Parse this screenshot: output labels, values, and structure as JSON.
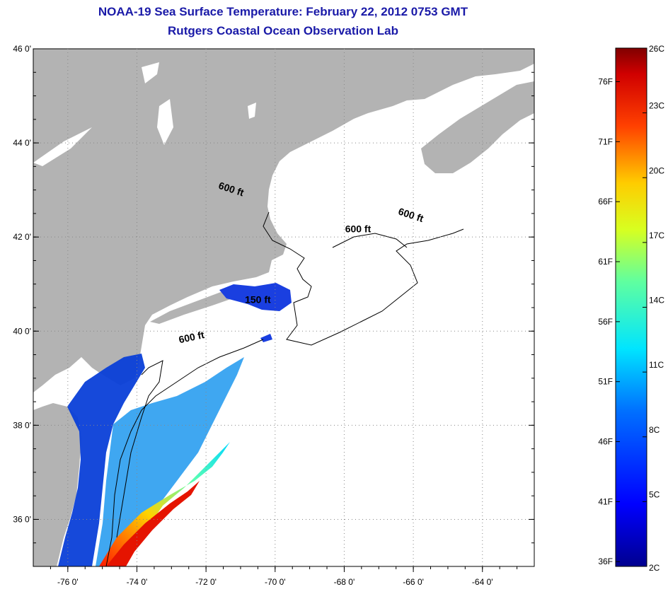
{
  "title": "NOAA-19 Sea Surface Temperature:  February 22, 2012 0753 GMT",
  "subtitle": "Rutgers Coastal Ocean Observation Lab",
  "map": {
    "lat_ticks": [
      {
        "lat": 46,
        "label": "46 0'"
      },
      {
        "lat": 44,
        "label": "44 0'"
      },
      {
        "lat": 42,
        "label": "42 0'"
      },
      {
        "lat": 40,
        "label": "40 0'"
      },
      {
        "lat": 38,
        "label": "38 0'"
      },
      {
        "lat": 36,
        "label": "36 0'"
      }
    ],
    "lon_ticks": [
      {
        "lon": -76,
        "label": "-76 0'"
      },
      {
        "lon": -74,
        "label": "-74 0'"
      },
      {
        "lon": -72,
        "label": "-72 0'"
      },
      {
        "lon": -70,
        "label": "-70 0'"
      },
      {
        "lon": -68,
        "label": "-68 0'"
      },
      {
        "lon": -66,
        "label": "-66 0'"
      },
      {
        "lon": -64,
        "label": "-64 0'"
      }
    ],
    "contour_labels": [
      {
        "text": "600 ft",
        "lon": -71.3,
        "lat": 42.95
      },
      {
        "text": "600 ft",
        "lon": -66.1,
        "lat": 42.4
      },
      {
        "text": "600 ft",
        "lon": -67.6,
        "lat": 42.1
      },
      {
        "text": "150 ft",
        "lon": -70.5,
        "lat": 40.6
      },
      {
        "text": "600 ft",
        "lon": -72.4,
        "lat": 39.8
      }
    ],
    "colors": {
      "land": "#b3b3b3",
      "ocean": "#ffffff",
      "grid": "#888888"
    }
  },
  "colorbar": {
    "celsius": [
      {
        "value": 26,
        "label": "26C"
      },
      {
        "value": 23,
        "label": "23C"
      },
      {
        "value": 20,
        "label": "20C"
      },
      {
        "value": 17,
        "label": "17C"
      },
      {
        "value": 14,
        "label": "14C"
      },
      {
        "value": 11,
        "label": "11C"
      },
      {
        "value": 8,
        "label": "8C"
      },
      {
        "value": 5,
        "label": "5C"
      },
      {
        "value": 2,
        "label": "2C"
      }
    ],
    "fahrenheit": [
      {
        "value": 76,
        "label": "76F"
      },
      {
        "value": 71,
        "label": "71F"
      },
      {
        "value": 66,
        "label": "66F"
      },
      {
        "value": 61,
        "label": "61F"
      },
      {
        "value": 56,
        "label": "56F"
      },
      {
        "value": 51,
        "label": "51F"
      },
      {
        "value": 46,
        "label": "46F"
      },
      {
        "value": 41,
        "label": "41F"
      },
      {
        "value": 36,
        "label": "36F"
      }
    ]
  }
}
